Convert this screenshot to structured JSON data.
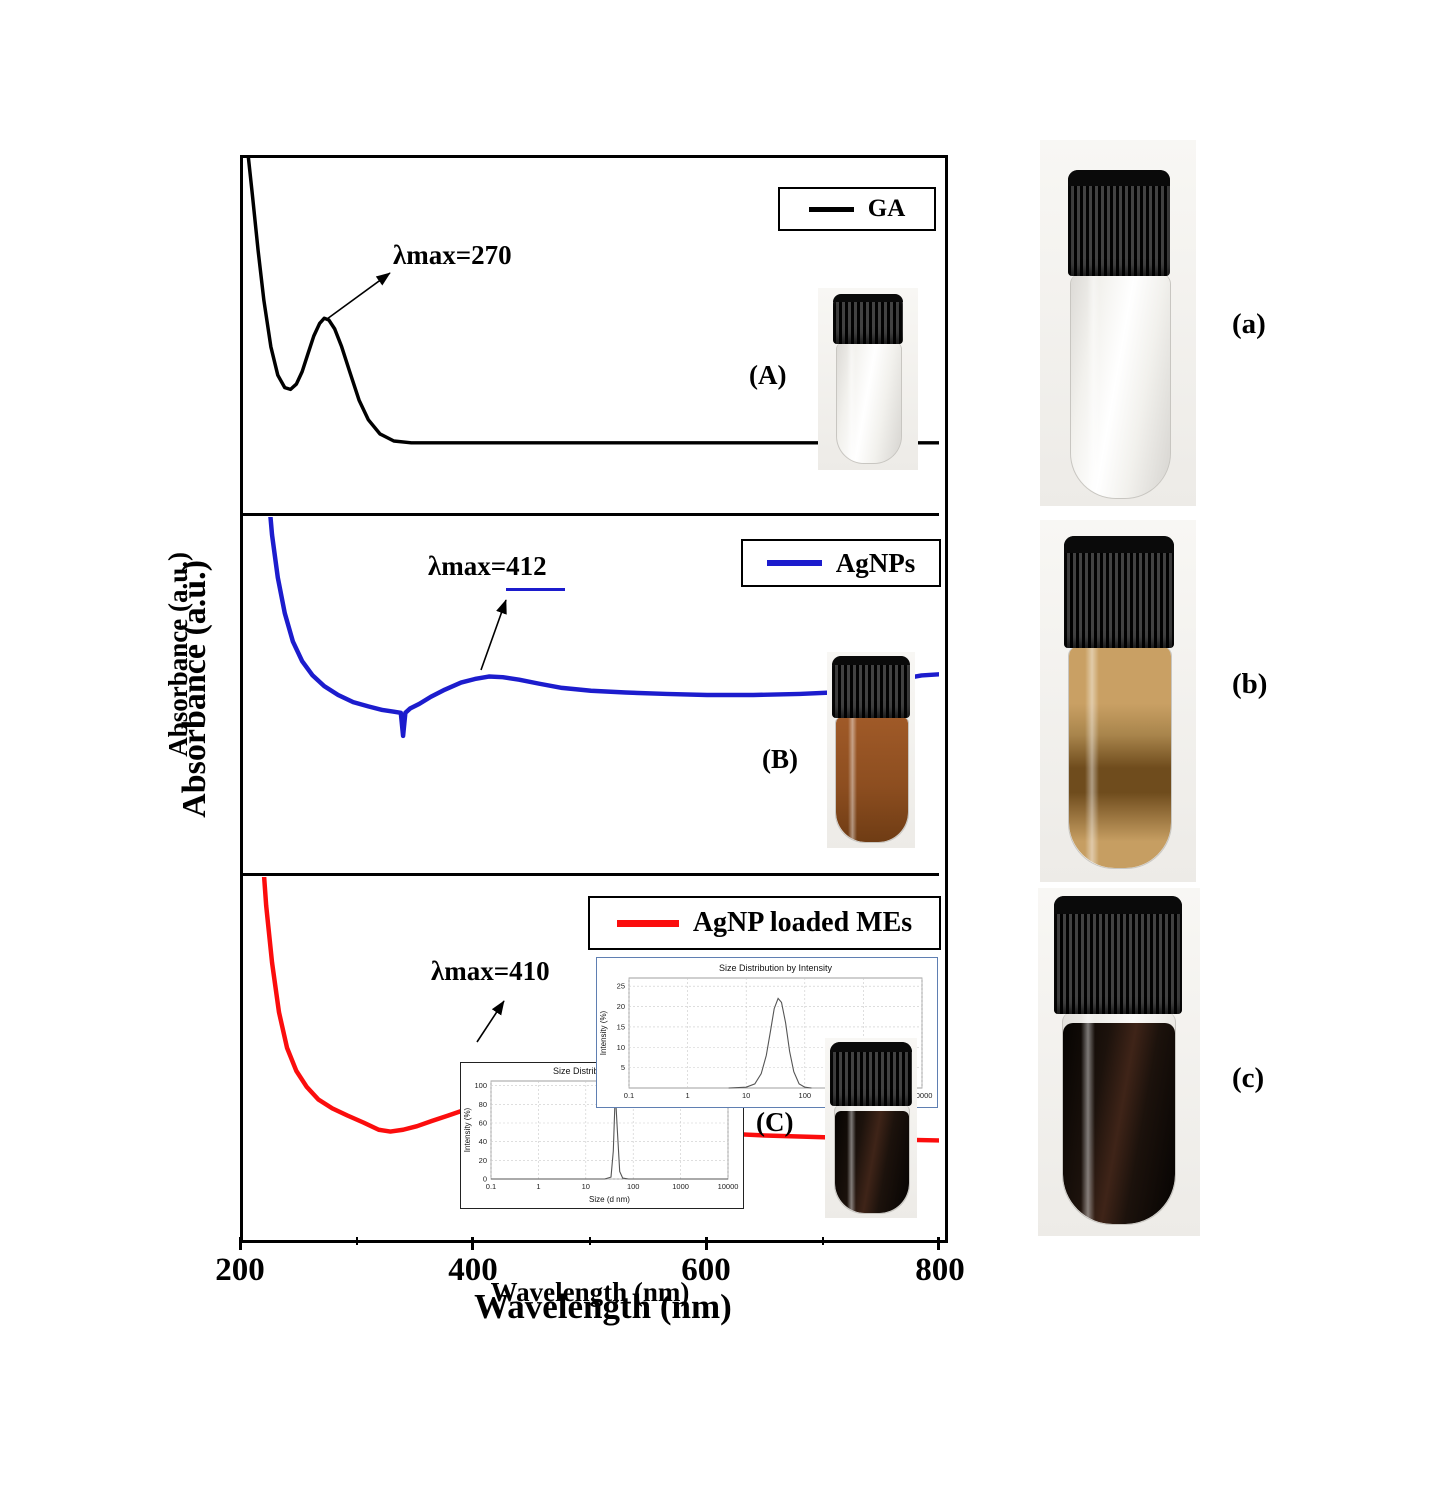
{
  "figure": {
    "background": "#ffffff",
    "xlabel": "Wavelength (nm)",
    "ylabel": "Absorbance (a.u.)",
    "x_ticks": [
      "200",
      "400",
      "600",
      "800"
    ]
  },
  "panels": [
    {
      "id": "A",
      "label": "(A)",
      "legend": "GA",
      "color": "#000000",
      "annotation": "λmax=270"
    },
    {
      "id": "B",
      "label": "(B)",
      "legend": "AgNPs",
      "color": "#1c1ccd",
      "annotation": "λmax=412"
    },
    {
      "id": "C",
      "label": "(C)",
      "legend": "AgNP loaded MEs",
      "color": "#fb0d0d",
      "annotation": "λmax=410"
    }
  ],
  "photos": [
    {
      "label": "(a)",
      "content": "vial with clear liquid and black ribbed cap"
    },
    {
      "label": "(b)",
      "content": "vial with brown AgNP solution and black ribbed cap"
    },
    {
      "label": "(c)",
      "content": "vial with dark brown-black liquid and black ribbed cap"
    }
  ],
  "vial_colors": {
    "cap": "#111111",
    "clear": "#f2f1ed",
    "amber_top": "#c9a064",
    "amber_mid": "#6f4c1d",
    "amber_bottom": "#c69e62",
    "amber_inset": "#8d4e20",
    "dark": "#1c120c"
  },
  "chart_data": [
    {
      "id": "ga_spectrum",
      "type": "line",
      "panel": "A",
      "legend": "GA",
      "color": "#000000",
      "xlabel": "Wavelength (nm)",
      "ylabel": "Absorbance (a.u.)",
      "xlim": [
        200,
        800
      ],
      "lambda_max": 270,
      "x": [
        200,
        204,
        208,
        213,
        218,
        224,
        230,
        236,
        241,
        246,
        251,
        256,
        261,
        266,
        270,
        274,
        279,
        285,
        292,
        300,
        308,
        318,
        330,
        345,
        365,
        400,
        450,
        500,
        550,
        600,
        650,
        700,
        750,
        800
      ],
      "y": [
        1.12,
        1.02,
        0.9,
        0.74,
        0.6,
        0.47,
        0.39,
        0.355,
        0.35,
        0.365,
        0.4,
        0.45,
        0.5,
        0.535,
        0.55,
        0.545,
        0.52,
        0.47,
        0.4,
        0.32,
        0.265,
        0.225,
        0.205,
        0.2,
        0.2,
        0.2,
        0.2,
        0.2,
        0.2,
        0.2,
        0.2,
        0.2,
        0.2,
        0.2
      ]
    },
    {
      "id": "agnp_spectrum",
      "type": "line",
      "panel": "B",
      "legend": "AgNPs",
      "color": "#1c1ccd",
      "xlabel": "Wavelength (nm)",
      "ylabel": "Absorbance (a.u.)",
      "xlim": [
        200,
        800
      ],
      "lambda_max": 412,
      "x": [
        221,
        225,
        230,
        236,
        243,
        251,
        260,
        270,
        282,
        295,
        308,
        320,
        330,
        336,
        338,
        340,
        344,
        352,
        362,
        374,
        388,
        400,
        412,
        424,
        438,
        455,
        475,
        500,
        530,
        565,
        600,
        640,
        680,
        715,
        745,
        768,
        785,
        800
      ],
      "y": [
        1.1,
        0.95,
        0.83,
        0.73,
        0.65,
        0.595,
        0.555,
        0.525,
        0.5,
        0.48,
        0.468,
        0.458,
        0.453,
        0.45,
        0.385,
        0.45,
        0.462,
        0.475,
        0.495,
        0.515,
        0.535,
        0.545,
        0.552,
        0.55,
        0.543,
        0.532,
        0.52,
        0.512,
        0.507,
        0.503,
        0.5,
        0.5,
        0.503,
        0.508,
        0.515,
        0.545,
        0.555,
        0.558
      ]
    },
    {
      "id": "agnp_me_spectrum",
      "type": "line",
      "panel": "C",
      "legend": "AgNP loaded MEs",
      "color": "#fb0d0d",
      "xlabel": "Wavelength (nm)",
      "ylabel": "Absorbance (a.u.)",
      "xlim": [
        200,
        800
      ],
      "lambda_max": 410,
      "x": [
        216,
        220,
        225,
        231,
        238,
        246,
        255,
        265,
        277,
        290,
        304,
        317,
        327,
        338,
        350,
        363,
        377,
        392,
        408,
        425,
        445,
        470,
        500,
        535,
        570,
        610,
        650,
        690,
        730,
        770,
        800
      ],
      "y": [
        1.1,
        0.92,
        0.76,
        0.62,
        0.52,
        0.455,
        0.41,
        0.375,
        0.35,
        0.33,
        0.31,
        0.29,
        0.285,
        0.29,
        0.3,
        0.315,
        0.33,
        0.347,
        0.36,
        0.352,
        0.335,
        0.318,
        0.305,
        0.295,
        0.287,
        0.28,
        0.274,
        0.27,
        0.266,
        0.262,
        0.26
      ]
    },
    {
      "id": "dls_upper",
      "type": "line",
      "target": "inset1",
      "title": "Size Distribution by Intensity",
      "ylabel": "Intensity (%)",
      "xlabel": "",
      "xscale": "log",
      "xlim": [
        0.1,
        10000
      ],
      "ylim": [
        0,
        27
      ],
      "yticks": [
        5,
        10,
        15,
        20,
        25
      ],
      "xticks": [
        0.1,
        1,
        10,
        100,
        1000,
        10000
      ],
      "x": [
        5,
        10,
        14,
        18,
        22,
        26,
        30,
        35,
        40,
        47,
        55,
        65,
        80,
        100,
        130
      ],
      "y": [
        0,
        0.2,
        1,
        3.5,
        8,
        14,
        19.5,
        22,
        21,
        16,
        9,
        4,
        1,
        0.2,
        0
      ]
    },
    {
      "id": "dls_lower",
      "type": "line",
      "target": "inset2",
      "title": "Size Distribution by Intensity",
      "ylabel": "Intensity (%)",
      "xlabel": "Size (d nm)",
      "xscale": "log",
      "xlim": [
        0.1,
        10000
      ],
      "ylim": [
        0,
        105
      ],
      "yticks": [
        0,
        20,
        40,
        60,
        80,
        100
      ],
      "xticks": [
        0.1,
        1,
        10,
        100,
        1000,
        10000
      ],
      "x": [
        0.1,
        1,
        10,
        25,
        34,
        38,
        42,
        46,
        52,
        60,
        80,
        200,
        10000
      ],
      "y": [
        0,
        0,
        0,
        0,
        2,
        30,
        93,
        55,
        8,
        1,
        0,
        0,
        0
      ]
    }
  ]
}
